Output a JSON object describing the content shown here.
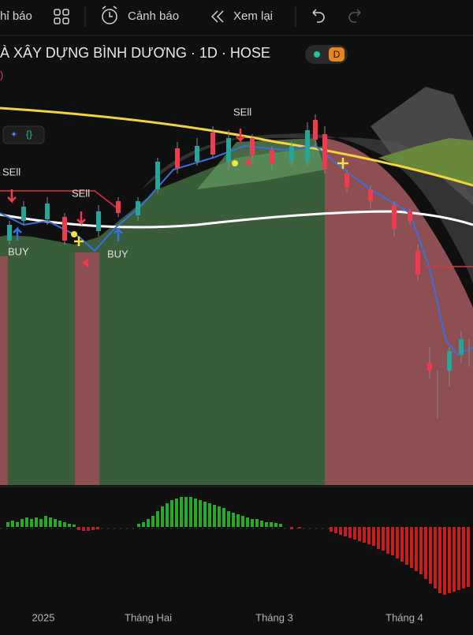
{
  "toolbar": {
    "indicators": "hỉ báo",
    "alerts": "Cảnh báo",
    "replay": "Xem lại"
  },
  "header": {
    "title": "À XÂY DỰNG BÌNH DƯƠNG · 1D · HOSE",
    "badge": "D",
    "fragment": ")"
  },
  "signals": [
    "SEll",
    "SEll",
    "SEll",
    "BUY",
    "BUY"
  ],
  "time_axis": [
    "2025",
    "Tháng Hai",
    "Tháng 3",
    "Tháng 4"
  ]
}
